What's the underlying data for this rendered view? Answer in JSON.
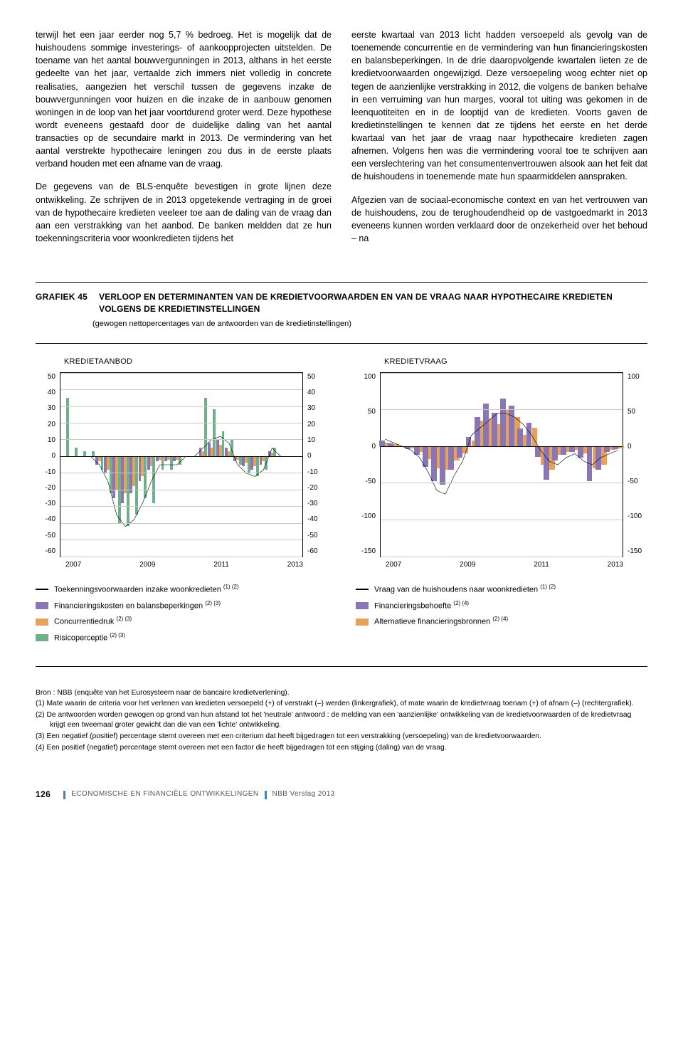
{
  "body_text": {
    "left": {
      "p1": "terwijl het een jaar eerder nog 5,7 % bedroeg. Het is mogelijk dat de huishoudens sommige investerings- of aankoopprojecten uitstelden. De toename van het aantal bouwvergunningen in 2013, althans in het eerste gedeelte van het jaar, vertaalde zich immers niet volledig in concrete realisaties, aangezien het verschil tussen de gegevens inzake de bouwvergunningen voor huizen en die inzake de in aanbouw genomen woningen in de loop van het jaar voortdurend groter werd. Deze hypothese wordt eveneens gestaafd door de duidelijke daling van het aantal transacties op de secundaire markt in 2013. De vermindering van het aantal verstrekte hypothecaire leningen zou dus in de eerste plaats verband houden met een afname van de vraag.",
      "p2": "De gegevens van de BLS-enquête bevestigen in grote lijnen deze ontwikkeling. Ze schrijven de in 2013 opgetekende vertraging in de groei van de hypothecaire kredieten veeleer toe aan de daling van de vraag dan aan een verstrakking van het aanbod. De banken meldden dat ze hun toekenningscriteria voor woonkredieten tijdens het"
    },
    "right": {
      "p1": "eerste kwartaal van 2013 licht hadden versoepeld als gevolg van de toenemende concurrentie en de vermindering van hun financieringskosten en balansbeperkingen. In de drie daaropvolgende kwartalen lieten ze de kredietvoorwaarden ongewijzigd. Deze versoepeling woog echter niet op tegen de aanzienlijke verstrakking in 2012, die volgens de banken behalve in een verruiming van hun marges, vooral tot uiting was gekomen in de leenquotiteiten en in de looptijd van de kredieten. Voorts gaven de kredietinstellingen te kennen dat ze tijdens het eerste en het derde kwartaal van het jaar de vraag naar hypothecaire kredieten zagen afnemen. Volgens hen was die vermindering vooral toe te schrijven aan een verslechtering van het consumentenvertrouwen alsook aan het feit dat de huishoudens in toenemende mate hun spaarmiddelen aanspraken.",
      "p2": "Afgezien van de sociaal-economische context en van het vertrouwen van de huishoudens, zou de terughoudendheid op de vastgoedmarkt in 2013 eveneens kunnen worden verklaard door de onzekerheid over het behoud – na"
    }
  },
  "chart": {
    "label": "GRAFIEK 45",
    "title": "VERLOOP EN DETERMINANTEN VAN DE KREDIETVOORWAARDEN EN VAN DE VRAAG NAAR HYPOTHECAIRE KREDIETEN VOLGENS DE KREDIETINSTELLINGEN",
    "subtitle": "(gewogen nettopercentages van de antwoorden van de kredietinstellingen)",
    "left": {
      "name": "KREDIETAANBOD",
      "ylim": [
        -60,
        50
      ],
      "yticks": [
        50,
        40,
        30,
        20,
        10,
        0,
        -10,
        -20,
        -30,
        -40,
        -50,
        -60
      ],
      "xlabels": [
        "2007",
        "2009",
        "2011",
        "2013"
      ],
      "line_color": "#000000",
      "bar_colors": {
        "purple": "#8b76b5",
        "orange": "#e8a15a",
        "green": "#6fb08a"
      },
      "bar_width_pct": 0.95,
      "line": [
        0,
        0,
        0,
        0,
        -5,
        -15,
        -35,
        -42,
        -38,
        -28,
        -15,
        -5,
        -5,
        -5,
        0,
        0,
        5,
        10,
        12,
        8,
        -5,
        -10,
        -12,
        -8,
        5,
        0,
        0,
        0
      ],
      "series": {
        "purple": [
          0,
          0,
          0,
          0,
          -5,
          -10,
          -25,
          -28,
          -22,
          -15,
          -8,
          -3,
          -3,
          -3,
          0,
          0,
          5,
          8,
          10,
          5,
          -3,
          -6,
          -8,
          -5,
          3,
          0,
          0,
          0
        ],
        "orange": [
          0,
          0,
          0,
          0,
          -3,
          -8,
          -20,
          -22,
          -18,
          -12,
          -6,
          -2,
          -2,
          -2,
          0,
          0,
          3,
          5,
          7,
          3,
          -2,
          -4,
          -6,
          -3,
          2,
          0,
          0,
          0
        ],
        "green": [
          35,
          5,
          3,
          3,
          -8,
          -22,
          -40,
          -42,
          -35,
          -25,
          -28,
          -8,
          -8,
          -5,
          0,
          0,
          35,
          28,
          15,
          10,
          -5,
          -10,
          -12,
          -8,
          5,
          0,
          0,
          0
        ]
      }
    },
    "right": {
      "name": "KREDIETVRAAG",
      "ylim": [
        -150,
        100
      ],
      "yticks": [
        100,
        50,
        0,
        -50,
        -100,
        -150
      ],
      "xlabels": [
        "2007",
        "2009",
        "2011",
        "2013"
      ],
      "line_color": "#000000",
      "bar_colors": {
        "purple": "#8b76b5",
        "orange": "#e8a15a"
      },
      "bar_width_pct": 1.3,
      "line": [
        10,
        5,
        0,
        -5,
        -15,
        -35,
        -60,
        -65,
        -40,
        -20,
        15,
        25,
        35,
        45,
        45,
        40,
        30,
        15,
        -5,
        -20,
        -25,
        -15,
        -10,
        -20,
        -25,
        -15,
        -10,
        -5
      ],
      "series": {
        "purple": [
          8,
          4,
          0,
          -4,
          -12,
          -28,
          -48,
          -52,
          -32,
          -16,
          12,
          40,
          58,
          45,
          65,
          55,
          24,
          32,
          -15,
          -46,
          -20,
          -12,
          -8,
          -16,
          -48,
          -32,
          -8,
          -4
        ],
        "orange": [
          5,
          3,
          0,
          -3,
          -8,
          -18,
          -30,
          -32,
          -20,
          -10,
          8,
          35,
          38,
          30,
          50,
          40,
          15,
          25,
          -25,
          -32,
          -12,
          -8,
          -5,
          -10,
          -30,
          -25,
          -5,
          -3
        ]
      }
    },
    "legend_left": [
      {
        "type": "line",
        "color": "#000000",
        "label": "Toekenningsvoorwaarden inzake woonkredieten",
        "sup": "(1) (2)"
      },
      {
        "type": "box",
        "color": "#8b76b5",
        "label": "Financieringskosten en balansbeperkingen",
        "sup": "(2) (3)"
      },
      {
        "type": "box",
        "color": "#e8a15a",
        "label": "Concurrentiedruk",
        "sup": "(2) (3)"
      },
      {
        "type": "box",
        "color": "#6fb08a",
        "label": "Risicoperceptie",
        "sup": "(2) (3)"
      }
    ],
    "legend_right": [
      {
        "type": "line",
        "color": "#000000",
        "label": "Vraag van de huishoudens naar woonkredieten",
        "sup": "(1) (2)"
      },
      {
        "type": "box",
        "color": "#8b76b5",
        "label": "Financieringsbehoefte",
        "sup": "(2) (4)"
      },
      {
        "type": "box",
        "color": "#e8a15a",
        "label": "Alternatieve financieringsbronnen",
        "sup": "(2) (4)"
      }
    ]
  },
  "notes": {
    "source": "Bron : NBB (enquête van het Eurosysteem naar de bancaire kredietverlening).",
    "n1": "(1) Mate waarin de criteria voor het verlenen van kredieten versoepeld (+) of verstrakt (–) werden (linkergrafiek), of mate waarin de kredietvraag toenam (+) of afnam (–) (rechtergrafiek).",
    "n2": "(2) De antwoorden worden gewogen op grond van hun afstand tot het 'neutrale' antwoord : de melding van een 'aanzienlijke' ontwikkeling van de kredietvoorwaarden of de kredietvraag krijgt een tweemaal groter gewicht dan die van een 'lichte' ontwikkeling.",
    "n3": "(3) Een negatief (positief) percentage stemt overeen met een criterium dat heeft bijgedragen tot een verstrakking (versoepeling) van de kredietvoorwaarden.",
    "n4": "(4) Een positief (negatief) percentage stemt overeen met een factor die heeft bijgedragen tot een stijging (daling) van de vraag."
  },
  "footer": {
    "page": "126",
    "section": "ECONOMISCHE EN FINANCIËLE ONTWIKKELINGEN",
    "report": "NBB Verslag 2013"
  }
}
